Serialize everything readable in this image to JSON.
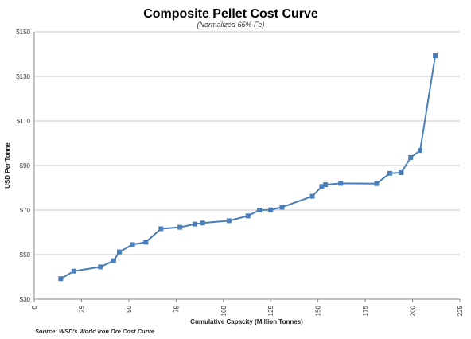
{
  "chart_data": {
    "type": "line",
    "title": "Composite Pellet Cost Curve",
    "subtitle": "(Normalized 65% Fe)",
    "xlabel": "Cumulative Capacity  (Million Tonnes)",
    "ylabel": "USD Per Tonne",
    "source": "Source:  WSD's World  Iron Ore Cost Curve",
    "xlim": [
      0,
      225
    ],
    "ylim": [
      30,
      150
    ],
    "x_ticks": [
      0,
      25,
      50,
      75,
      100,
      125,
      150,
      175,
      200,
      225
    ],
    "y_ticks": [
      30,
      50,
      70,
      90,
      110,
      130,
      150
    ],
    "y_tick_labels": [
      "$30",
      "$50",
      "$70",
      "$90",
      "$110",
      "$130",
      "$150"
    ],
    "grid": true,
    "legend": "none",
    "series": [
      {
        "color": "#4a7ebb",
        "marker": "square",
        "points": [
          [
            14,
            39.2
          ],
          [
            21,
            42.6
          ],
          [
            35,
            44.5
          ],
          [
            42,
            47.3
          ],
          [
            45,
            51.2
          ],
          [
            52,
            54.5
          ],
          [
            59,
            55.6
          ],
          [
            67,
            61.6
          ],
          [
            77,
            62.3
          ],
          [
            85,
            63.7
          ],
          [
            89,
            64.2
          ],
          [
            103,
            65.2
          ],
          [
            113,
            67.4
          ],
          [
            119,
            70.0
          ],
          [
            125,
            70.1
          ],
          [
            131,
            71.3
          ],
          [
            147,
            76.2
          ],
          [
            152,
            80.6
          ],
          [
            154,
            81.4
          ],
          [
            162,
            82.0
          ],
          [
            181,
            81.9
          ],
          [
            188,
            86.5
          ],
          [
            194,
            86.8
          ],
          [
            199,
            93.6
          ],
          [
            204,
            96.7
          ],
          [
            212,
            139.3
          ]
        ]
      }
    ]
  }
}
